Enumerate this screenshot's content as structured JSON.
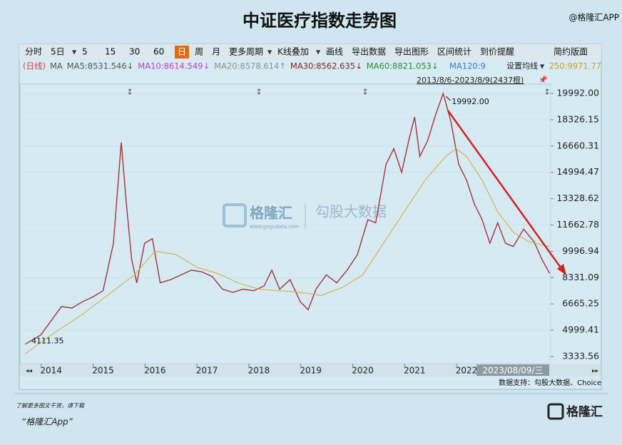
{
  "chart_data": {
    "type": "line",
    "title": "中证医疗指数走势图",
    "brand": "@格隆汇APP",
    "toolbar": [
      "分时",
      "5日",
      "5",
      "15",
      "30",
      "60",
      "日",
      "周",
      "月",
      "更多周期",
      "K线叠加",
      "画线",
      "导出数据",
      "导出图形",
      "区间统计",
      "到价提醒"
    ],
    "layout_button": "简约版面",
    "ma_legend": [
      {
        "text": "(日线)",
        "color": "#d04040"
      },
      {
        "text": "MA",
        "color": "#555555"
      },
      {
        "text": "MA5:8531.546↓",
        "color": "#555555"
      },
      {
        "text": "MA10:8614.549↓",
        "color": "#c040c0"
      },
      {
        "text": "MA20:8578.614↑",
        "color": "#909090"
      },
      {
        "text": "MA30:8562.635↓",
        "color": "#8b2020"
      },
      {
        "text": "MA60:8821.053↓",
        "color": "#2e8b2e"
      },
      {
        "text": "MA120:9",
        "color": "#3c78c8"
      },
      {
        "text": "250:9971.77",
        "color": "#d0a020"
      }
    ],
    "ma_button": "设置均线",
    "range_label": "2013/8/6-2023/8/9(2437根)",
    "annotations": [
      {
        "text": "4111.35",
        "x": 2013.5,
        "y": 4111.35
      },
      {
        "text": "19992.00",
        "x": 2021.55,
        "y": 19992
      }
    ],
    "cursor_label": "2023/08/09/三",
    "source": "数据支持：勾股大数据、Choice",
    "footer_note": "了解更多图文干货，请下载",
    "footer_app": "“格隆汇App”",
    "footer_logo": "格隆汇",
    "watermark": [
      "格隆汇",
      "www.gogudata.com",
      "勾股大数据"
    ],
    "xlim": [
      2013.4,
      2023.62
    ],
    "xticks": [
      2014,
      2015,
      2016,
      2017,
      2018,
      2019,
      2020,
      2021,
      2022
    ],
    "ylim": [
      2880,
      20580
    ],
    "yticks": [
      {
        "value": 3333.56,
        "label": "3333.56"
      },
      {
        "value": 4999.41,
        "label": "4999.41"
      },
      {
        "value": 6665.25,
        "label": "6665.25"
      },
      {
        "value": 8331.09,
        "label": "8331.09"
      },
      {
        "value": 9996.94,
        "label": "9996.94"
      },
      {
        "value": 11662.78,
        "label": "11662.78"
      },
      {
        "value": 13328.62,
        "label": "13328.62"
      },
      {
        "value": 14994.47,
        "label": "14994.47"
      },
      {
        "value": 16660.31,
        "label": "16660.31"
      },
      {
        "value": 18326.15,
        "label": "18326.15"
      },
      {
        "value": 19992,
        "label": "19992.00"
      }
    ],
    "grid": true,
    "series": [
      {
        "color": "#a8323a",
        "x": [
          2013.5,
          2013.8,
          2014.0,
          2014.2,
          2014.4,
          2014.6,
          2014.8,
          2015.0,
          2015.2,
          2015.35,
          2015.45,
          2015.55,
          2015.65,
          2015.8,
          2015.95,
          2016.1,
          2016.3,
          2016.5,
          2016.7,
          2016.9,
          2017.1,
          2017.3,
          2017.5,
          2017.7,
          2017.9,
          2018.1,
          2018.25,
          2018.4,
          2018.6,
          2018.8,
          2018.95,
          2019.1,
          2019.3,
          2019.5,
          2019.7,
          2019.9,
          2020.1,
          2020.25,
          2020.45,
          2020.6,
          2020.75,
          2020.9,
          2021.0,
          2021.1,
          2021.25,
          2021.4,
          2021.55,
          2021.7,
          2021.85,
          2022.0,
          2022.15,
          2022.3,
          2022.45,
          2022.6,
          2022.75,
          2022.9,
          2023.1,
          2023.3,
          2023.45,
          2023.6
        ],
        "values": [
          4111.35,
          4700,
          5600,
          6500,
          6400,
          6800,
          7100,
          7500,
          10500,
          16900,
          13000,
          9500,
          8000,
          10500,
          10800,
          8000,
          8200,
          8500,
          8800,
          8700,
          8400,
          7600,
          7400,
          7600,
          7500,
          7800,
          8800,
          7600,
          8200,
          6800,
          6300,
          7600,
          8500,
          8000,
          8800,
          9800,
          12000,
          11800,
          15500,
          16500,
          15000,
          17200,
          18500,
          16000,
          17000,
          18600,
          19992,
          18200,
          15500,
          14500,
          13000,
          12000,
          10500,
          11800,
          10500,
          10300,
          11400,
          10600,
          9500,
          8600
        ]
      },
      {
        "color": "#d4b040",
        "x": [
          2013.5,
          2014.0,
          2014.6,
          2015.0,
          2015.6,
          2016.0,
          2016.4,
          2016.8,
          2017.2,
          2017.6,
          2018.0,
          2018.4,
          2018.8,
          2019.2,
          2019.6,
          2020.0,
          2020.4,
          2020.8,
          2021.2,
          2021.6,
          2021.8,
          2022.0,
          2022.3,
          2022.6,
          2022.9,
          2023.2,
          2023.6
        ],
        "values": [
          3500,
          4700,
          6000,
          7000,
          8500,
          10000,
          9800,
          9000,
          8600,
          8000,
          7600,
          7500,
          7400,
          7200,
          7700,
          8500,
          10500,
          12500,
          14500,
          16000,
          16500,
          16000,
          14500,
          12500,
          11200,
          10600,
          10300
        ]
      }
    ]
  }
}
